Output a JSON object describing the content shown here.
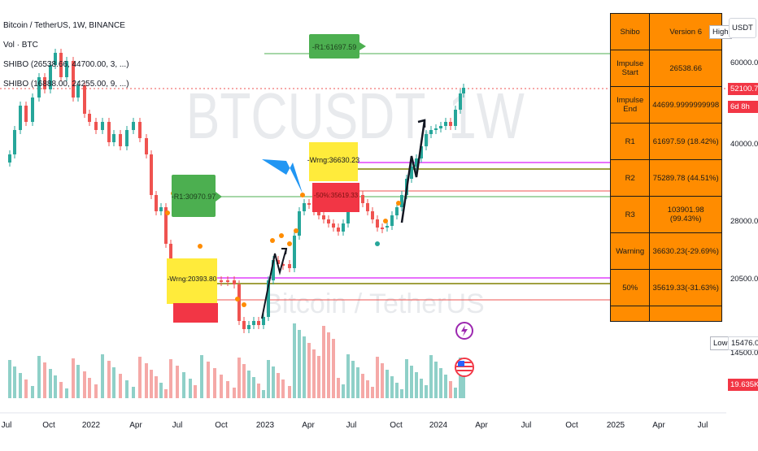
{
  "header": {
    "symbol_line": "Bitcoin / TetherUS, 1W, BINANCE",
    "vol_line": "Vol · BTC",
    "shibo1_line": "SHIBO (26538.66, 44700.00, 3, ...)",
    "shibo2_line": "SHIBO (16888.00, 24255.00, 9, ...)"
  },
  "watermark": {
    "ticker": "BTCUSDT, 1W",
    "name": "Bitcoin / TetherUS"
  },
  "price_scale": {
    "currency_button": "USDT",
    "high_label": "High",
    "low_label": "Low",
    "ticks": [
      "60000.00",
      "40000.00",
      "28000.00",
      "20500.00",
      "14500.00"
    ],
    "current_price": "52100.70",
    "countdown": "6d 8h",
    "low_value": "15476.00",
    "volume_value": "19.635K"
  },
  "time_axis": {
    "labels": [
      "Jul",
      "Oct",
      "2022",
      "Apr",
      "Jul",
      "Oct",
      "2023",
      "Apr",
      "Jul",
      "Oct",
      "2024",
      "Apr",
      "Jul",
      "Oct",
      "2025",
      "Apr",
      "Jul"
    ]
  },
  "annotations": {
    "r1_top": "-R1:61697.59",
    "r1_left": "-R1:30970.97",
    "warning_top": "-Wrng:36630.23",
    "warning_left": "-Wrng:20393.80",
    "red_box_text": "-50%:35619.33"
  },
  "table": {
    "rows": [
      [
        "Shibo",
        "Version 6"
      ],
      [
        "Impulse Start",
        "26538.66"
      ],
      [
        "Impulse End",
        "44699.9999999998"
      ],
      [
        "R1",
        "61697.59 (18.42%)"
      ],
      [
        "R2",
        "75289.78 (44.51%)"
      ],
      [
        "R3",
        "103901.98 (99.43%)"
      ],
      [
        "Warning",
        "36630.23(-29.69%)"
      ],
      [
        "50%",
        "35619.33(-31.63%)"
      ]
    ]
  },
  "colors": {
    "bull": "#26a69a",
    "bear": "#ef5350",
    "table_bg": "#ff8c00",
    "label_green": "#4caf50",
    "label_yellow": "#ffeb3b",
    "label_red": "#f23645",
    "arrow_blue": "#2196f3",
    "line_purple": "#e040fb",
    "line_olive": "#808000"
  },
  "icons": [
    "lightning-icon",
    "us-flag-icon"
  ]
}
